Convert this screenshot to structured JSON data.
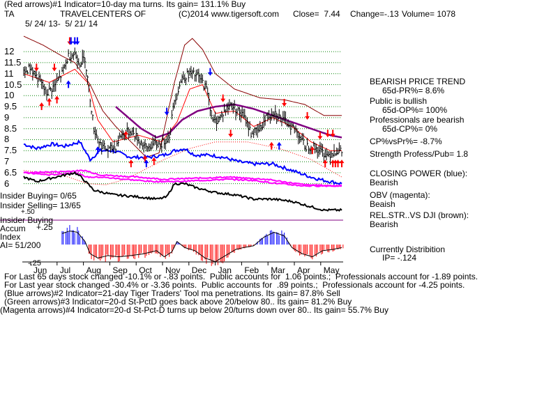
{
  "header": {
    "line1": "(Red arrows)#1 Indicator=10-day ma turns. Its gain= 131.1% Buy",
    "ticker": "TA",
    "company": "TRAVELCENTERS OF",
    "copyright": "(C)2014 www.tigersoft.com",
    "close": "Close=  7.44",
    "change": "Change=-.13",
    "volume": "Volume= 1078",
    "dates": "5/ 24/ 13-  5/ 21/ 14"
  },
  "left_labels": {
    "insider_buying": "Insider Buying= 0/65",
    "insider_selling": "Insider Selling= 13/65",
    "plus50": "+.50",
    "insider_buying2": "Insider Buying",
    "accum": "Accum",
    "plus25": "+.25",
    "index": "Index",
    "ai": "AI= 51/200",
    "minus25": "-.25"
  },
  "right_panel": {
    "bearish_trend": "BEARISH PRICE TREND",
    "pr": "65d-PR%= 8.6%",
    "public": "Public is bullish",
    "op": "65d-OP%= 100%",
    "pros": "Professionals are bearish",
    "cp": "65d-CP%= 0%",
    "cpvspr": "CP%vsPr%= -8.7%",
    "strength": "Strength Profess/Pub= 1.8",
    "closing_power": "CLOSING POWER (blue):",
    "cp_bearish": "Bearish",
    "obv": "OBV (magenta):",
    "obv_val": "Beaish",
    "relstr": "REL.STR..VS DJI (brown):",
    "relstr_val": "Bearish",
    "currently": "Currently Distribition",
    "ip": "IP= -.124"
  },
  "footer": {
    "l1": "For Last 65 days stock changed -10.1% or -.83 points.  Public accounts for  1.06 points.;  Professionals account for -1.89 points.",
    "l2": "For Last year stock changed -30.4% or -3.36 points.  Public accounts for  .89 points.;  Professionals account for -4.25 points.",
    "l3": "(Blue arrows)#2 Indicator=21-day Tiger Traders' Tool ma penetrations. Its gain= 87.8% Sell",
    "l4": "(Green arrows)#3 Indicator=20-d St-PctD goes back above 20/below 80.. Its gain= 81.2% Buy",
    "l5": "(Magenta arrows)#4 Indicator=20-d St-Pct-D turns up below 20/turns down over 80.. Its gain= 55.7% Buy"
  },
  "colors": {
    "price": "#000000",
    "ma_fast": "#ff0000",
    "ma_slow": "#880000",
    "ma_mid": "#800080",
    "closing_power": "#0000ff",
    "obv": "#ff00ff",
    "relstr": "#000000",
    "grid": "#008000",
    "accum_pos": "#0000ff",
    "accum_neg": "#ff0000",
    "arrow_red": "#ff0000",
    "arrow_blue": "#0000ff"
  },
  "chart_data": {
    "type": "line",
    "ylim": [
      5.8,
      12.7
    ],
    "yticks": [
      "12",
      "11.5",
      "11",
      "10.5",
      "10",
      "9.5",
      "9",
      "8.5",
      "8",
      "7.5",
      "7",
      "6.5",
      "6"
    ],
    "ytick_values": [
      12,
      11.5,
      11,
      10.5,
      10,
      9.5,
      9,
      8.5,
      8,
      7.5,
      7,
      6.5,
      6
    ],
    "months": [
      "Jun",
      "Jul",
      "Aug",
      "Sep",
      "Oct",
      "Nov",
      "Dec",
      "Jan",
      "Feb",
      "Mar",
      "Apr",
      "May"
    ],
    "x_count": 250,
    "price_anchors": [
      [
        0,
        11.0
      ],
      [
        5,
        11.3
      ],
      [
        12,
        10.7
      ],
      [
        18,
        10.1
      ],
      [
        25,
        10.5
      ],
      [
        30,
        11.0
      ],
      [
        35,
        11.8
      ],
      [
        40,
        11.9
      ],
      [
        44,
        11.5
      ],
      [
        48,
        11.7
      ],
      [
        55,
        8.5
      ],
      [
        60,
        7.8
      ],
      [
        66,
        7.5
      ],
      [
        72,
        7.7
      ],
      [
        76,
        8.2
      ],
      [
        84,
        8.4
      ],
      [
        90,
        8.0
      ],
      [
        96,
        7.6
      ],
      [
        102,
        7.8
      ],
      [
        108,
        7.8
      ],
      [
        114,
        8.2
      ],
      [
        118,
        9.8
      ],
      [
        124,
        10.8
      ],
      [
        130,
        11.0
      ],
      [
        136,
        10.9
      ],
      [
        140,
        10.6
      ],
      [
        144,
        10.2
      ],
      [
        148,
        8.8
      ],
      [
        152,
        8.9
      ],
      [
        156,
        9.2
      ],
      [
        162,
        9.6
      ],
      [
        168,
        9.3
      ],
      [
        174,
        8.9
      ],
      [
        178,
        8.3
      ],
      [
        184,
        8.4
      ],
      [
        190,
        9.0
      ],
      [
        196,
        9.3
      ],
      [
        202,
        8.9
      ],
      [
        208,
        8.7
      ],
      [
        214,
        8.4
      ],
      [
        220,
        7.7
      ],
      [
        226,
        7.7
      ],
      [
        232,
        7.5
      ],
      [
        238,
        7.3
      ],
      [
        244,
        7.5
      ],
      [
        249,
        7.44
      ]
    ],
    "ma_fast_anchors": [
      [
        0,
        11.0
      ],
      [
        20,
        10.6
      ],
      [
        40,
        11.2
      ],
      [
        50,
        10.6
      ],
      [
        58,
        8.9
      ],
      [
        70,
        7.9
      ],
      [
        90,
        8.2
      ],
      [
        108,
        7.9
      ],
      [
        120,
        8.8
      ],
      [
        130,
        10.3
      ],
      [
        140,
        10.5
      ],
      [
        150,
        9.2
      ],
      [
        165,
        9.3
      ],
      [
        180,
        8.6
      ],
      [
        195,
        9.0
      ],
      [
        210,
        8.6
      ],
      [
        225,
        7.9
      ],
      [
        240,
        7.5
      ],
      [
        249,
        7.5
      ]
    ],
    "ma_slow_anchors": [
      [
        0,
        12.7
      ],
      [
        15,
        12.3
      ],
      [
        30,
        11.8
      ],
      [
        40,
        11.5
      ],
      [
        52,
        10.5
      ],
      [
        62,
        9.3
      ],
      [
        72,
        8.6
      ],
      [
        84,
        7.9
      ],
      [
        96,
        7.2
      ],
      [
        106,
        7.4
      ],
      [
        118,
        10.6
      ],
      [
        126,
        12.3
      ],
      [
        132,
        12.6
      ],
      [
        140,
        12.1
      ],
      [
        150,
        11.0
      ],
      [
        165,
        10.3
      ],
      [
        185,
        9.9
      ],
      [
        205,
        9.8
      ],
      [
        220,
        9.6
      ],
      [
        235,
        9.1
      ],
      [
        249,
        9.1
      ]
    ],
    "ma_mid_anchors": [
      [
        72,
        9.5
      ],
      [
        82,
        9.0
      ],
      [
        92,
        8.5
      ],
      [
        104,
        8.1
      ],
      [
        114,
        8.3
      ],
      [
        124,
        8.9
      ],
      [
        136,
        9.3
      ],
      [
        150,
        9.5
      ],
      [
        165,
        9.6
      ],
      [
        180,
        9.4
      ],
      [
        195,
        9.1
      ],
      [
        210,
        8.8
      ],
      [
        225,
        8.5
      ],
      [
        240,
        8.2
      ],
      [
        249,
        8.1
      ]
    ],
    "ma_dotted_anchors": [
      [
        0,
        6.6
      ],
      [
        30,
        6.4
      ],
      [
        50,
        6.0
      ],
      [
        64,
        5.95
      ],
      [
        80,
        6.2
      ],
      [
        100,
        6.8
      ],
      [
        110,
        7.1
      ],
      [
        130,
        7.6
      ],
      [
        150,
        7.9
      ],
      [
        175,
        7.9
      ],
      [
        200,
        7.6
      ],
      [
        225,
        7.1
      ],
      [
        249,
        6.3
      ]
    ],
    "cp_anchors": [
      [
        0,
        7.8
      ],
      [
        10,
        7.6
      ],
      [
        22,
        7.8
      ],
      [
        32,
        7.7
      ],
      [
        44,
        7.9
      ],
      [
        52,
        7.1
      ],
      [
        60,
        7.5
      ],
      [
        70,
        7.5
      ],
      [
        84,
        7.2
      ],
      [
        98,
        7.2
      ],
      [
        110,
        7.3
      ],
      [
        118,
        7.5
      ],
      [
        126,
        7.6
      ],
      [
        134,
        7.3
      ],
      [
        146,
        7.3
      ],
      [
        156,
        7.2
      ],
      [
        168,
        7.0
      ],
      [
        180,
        6.9
      ],
      [
        195,
        6.9
      ],
      [
        205,
        6.7
      ],
      [
        215,
        6.5
      ],
      [
        225,
        6.3
      ],
      [
        235,
        6.15
      ],
      [
        249,
        6.0
      ]
    ],
    "obv_anchors": [
      [
        0,
        6.5
      ],
      [
        20,
        6.4
      ],
      [
        40,
        6.5
      ],
      [
        50,
        6.3
      ],
      [
        60,
        6.3
      ],
      [
        80,
        6.2
      ],
      [
        100,
        6.1
      ],
      [
        120,
        6.1
      ],
      [
        140,
        6.15
      ],
      [
        160,
        6.2
      ],
      [
        180,
        6.15
      ],
      [
        200,
        6.0
      ],
      [
        220,
        5.9
      ],
      [
        249,
        5.9
      ]
    ],
    "obv_upper_anchors": [
      [
        0,
        6.5
      ],
      [
        30,
        6.55
      ],
      [
        48,
        6.6
      ],
      [
        60,
        6.4
      ],
      [
        90,
        6.3
      ],
      [
        110,
        6.2
      ],
      [
        135,
        6.25
      ],
      [
        160,
        6.3
      ],
      [
        190,
        6.2
      ],
      [
        220,
        5.95
      ],
      [
        249,
        5.9
      ]
    ],
    "relstr_anchors": [
      [
        0,
        6.3
      ],
      [
        10,
        6.1
      ],
      [
        25,
        6.3
      ],
      [
        40,
        6.5
      ],
      [
        45,
        6.3
      ],
      [
        55,
        5.7
      ],
      [
        70,
        5.5
      ],
      [
        90,
        5.4
      ],
      [
        105,
        5.3
      ],
      [
        112,
        5.4
      ],
      [
        118,
        6.0
      ],
      [
        126,
        6.0
      ],
      [
        136,
        5.8
      ],
      [
        150,
        5.6
      ],
      [
        165,
        5.5
      ],
      [
        180,
        5.3
      ],
      [
        195,
        5.3
      ],
      [
        210,
        5.2
      ],
      [
        222,
        5.0
      ],
      [
        235,
        4.8
      ],
      [
        249,
        4.8
      ]
    ],
    "accum_anchors": [
      [
        0,
        0.0
      ],
      [
        6,
        0.05
      ],
      [
        12,
        0.1
      ],
      [
        18,
        0.12
      ],
      [
        24,
        0.14
      ],
      [
        30,
        0.18
      ],
      [
        36,
        0.22
      ],
      [
        42,
        0.2
      ],
      [
        48,
        0.05
      ],
      [
        52,
        -0.15
      ],
      [
        58,
        -0.22
      ],
      [
        66,
        -0.18
      ],
      [
        74,
        -0.2
      ],
      [
        84,
        -0.18
      ],
      [
        94,
        -0.15
      ],
      [
        104,
        -0.1
      ],
      [
        110,
        -0.2
      ],
      [
        116,
        -0.12
      ],
      [
        120,
        0.05
      ],
      [
        126,
        -0.05
      ],
      [
        134,
        -0.1
      ],
      [
        142,
        -0.22
      ],
      [
        150,
        -0.28
      ],
      [
        158,
        -0.18
      ],
      [
        166,
        -0.08
      ],
      [
        172,
        -0.05
      ],
      [
        180,
        -0.02
      ],
      [
        188,
        0.12
      ],
      [
        196,
        0.2
      ],
      [
        204,
        0.14
      ],
      [
        210,
        -0.05
      ],
      [
        218,
        -0.15
      ],
      [
        226,
        -0.2
      ],
      [
        234,
        -0.1
      ],
      [
        242,
        -0.08
      ],
      [
        249,
        -0.05
      ]
    ],
    "arrows": [
      {
        "i": 10,
        "v": 11.2,
        "dir": "down",
        "color": "red"
      },
      {
        "i": 24,
        "v": 11.2,
        "dir": "down",
        "color": "red"
      },
      {
        "i": 14,
        "v": 9.6,
        "dir": "up",
        "color": "red"
      },
      {
        "i": 20,
        "v": 9.8,
        "dir": "up",
        "color": "red"
      },
      {
        "i": 26,
        "v": 9.9,
        "dir": "up",
        "color": "red"
      },
      {
        "i": 36,
        "v": 12.4,
        "dir": "down",
        "color": "red"
      },
      {
        "i": 40,
        "v": 12.4,
        "dir": "down",
        "color": "blue"
      },
      {
        "i": 42,
        "v": 12.4,
        "dir": "down",
        "color": "blue"
      },
      {
        "i": 37,
        "v": 12.4,
        "dir": "down",
        "color": "blue"
      },
      {
        "i": 35,
        "v": 10.6,
        "dir": "up",
        "color": "blue"
      },
      {
        "i": 58,
        "v": 7.6,
        "dir": "up",
        "color": "blue"
      },
      {
        "i": 80,
        "v": 8.3,
        "dir": "up",
        "color": "red"
      },
      {
        "i": 84,
        "v": 7.0,
        "dir": "up",
        "color": "red"
      },
      {
        "i": 95,
        "v": 7.2,
        "dir": "up",
        "color": "red"
      },
      {
        "i": 102,
        "v": 7.1,
        "dir": "up",
        "color": "red"
      },
      {
        "i": 96,
        "v": 7.0,
        "dir": "up",
        "color": "blue"
      },
      {
        "i": 112,
        "v": 9.2,
        "dir": "down",
        "color": "blue"
      },
      {
        "i": 146,
        "v": 11.0,
        "dir": "down",
        "color": "blue"
      },
      {
        "i": 156,
        "v": 9.8,
        "dir": "down",
        "color": "red"
      },
      {
        "i": 162,
        "v": 8.2,
        "dir": "down",
        "color": "red"
      },
      {
        "i": 194,
        "v": 7.8,
        "dir": "up",
        "color": "red"
      },
      {
        "i": 200,
        "v": 7.8,
        "dir": "up",
        "color": "blue"
      },
      {
        "i": 204,
        "v": 9.6,
        "dir": "down",
        "color": "red"
      },
      {
        "i": 222,
        "v": 9.0,
        "dir": "down",
        "color": "red"
      },
      {
        "i": 226,
        "v": 7.6,
        "dir": "up",
        "color": "red"
      },
      {
        "i": 232,
        "v": 8.1,
        "dir": "down",
        "color": "red"
      },
      {
        "i": 238,
        "v": 8.2,
        "dir": "down",
        "color": "red"
      },
      {
        "i": 242,
        "v": 8.2,
        "dir": "down",
        "color": "red"
      },
      {
        "i": 236,
        "v": 7.0,
        "dir": "up",
        "color": "red"
      },
      {
        "i": 242,
        "v": 7.0,
        "dir": "up",
        "color": "red"
      },
      {
        "i": 244,
        "v": 7.0,
        "dir": "up",
        "color": "red"
      },
      {
        "i": 246,
        "v": 7.0,
        "dir": "up",
        "color": "red"
      },
      {
        "i": 250,
        "v": 7.0,
        "dir": "up",
        "color": "red"
      }
    ]
  }
}
